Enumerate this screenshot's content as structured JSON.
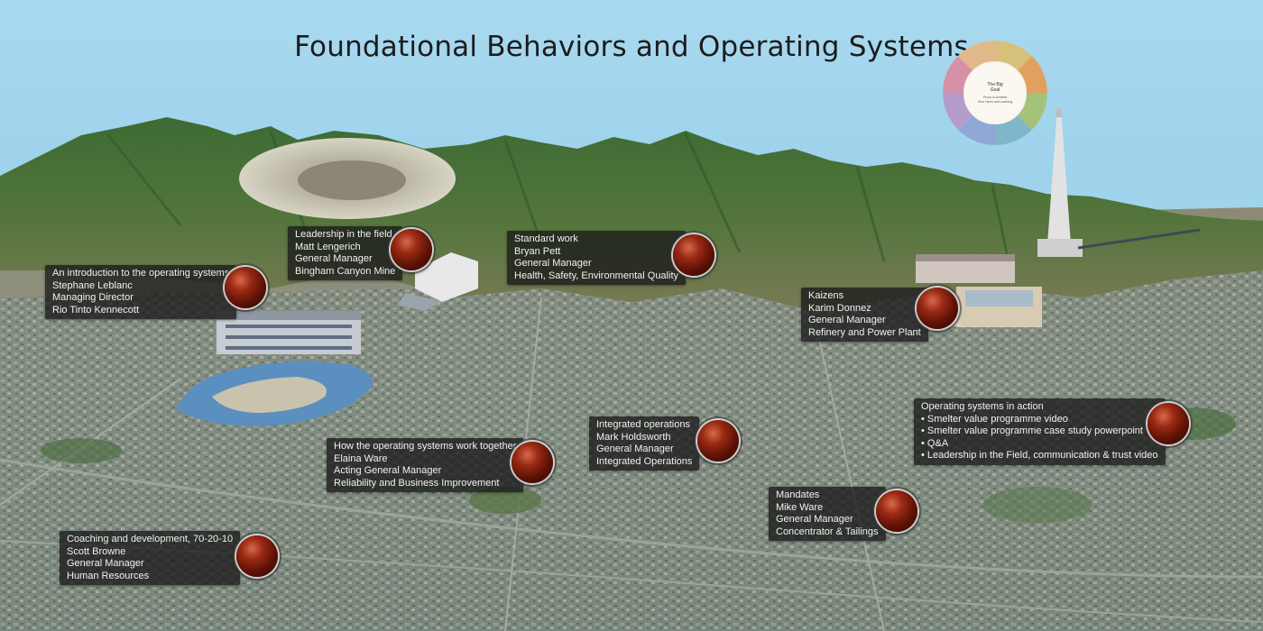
{
  "title": "Foundational Behaviors and Operating Systems",
  "colors": {
    "sky": "#a6d6ee",
    "label_bg": "#191919",
    "sphere": "#7a1e0c"
  },
  "hotspots": [
    {
      "id": "intro",
      "lines": [
        "An introduction to the operating systems",
        "Stephane Leblanc",
        "Managing Director",
        "Rio Tinto Kennecott"
      ]
    },
    {
      "id": "leadership",
      "lines": [
        "Leadership in the field",
        "Matt Lengerich",
        "General Manager",
        "Bingham Canyon Mine"
      ]
    },
    {
      "id": "standard-work",
      "lines": [
        "Standard work",
        "Bryan Pett",
        "General Manager",
        "Health, Safety, Environmental Quality"
      ]
    },
    {
      "id": "kaizens",
      "lines": [
        "Kaizens",
        "Karim Donnez",
        "General Manager",
        "Refinery and Power Plant"
      ]
    },
    {
      "id": "operating-in-action",
      "heading": "Operating systems in action",
      "bullets": [
        "Smelter value programme video",
        "Smelter value programme case study powerpoint",
        "Q&A",
        "Leadership in the Field, communication & trust video"
      ]
    },
    {
      "id": "integrated-ops",
      "lines": [
        "Integrated operations",
        "Mark Holdsworth",
        "General Manager",
        "Integrated Operations"
      ]
    },
    {
      "id": "how-work-together",
      "lines": [
        "How the operating systems work together",
        "Elaina Ware",
        "Acting General Manager",
        "Reliability and Business Improvement"
      ]
    },
    {
      "id": "mandates",
      "lines": [
        "Mandates",
        "Mike Ware",
        "General Manager",
        "Concentrator & Tailings"
      ]
    },
    {
      "id": "coaching",
      "lines": [
        "Coaching and development,  70-20-10",
        "Scott Browne",
        "General Manager",
        "Human Resources"
      ]
    }
  ],
  "wheel": {
    "center": [
      "The Big",
      "Goal"
    ],
    "center_sub": [
      "Proud to Achieve",
      "Zero Harm and Learning"
    ],
    "icon": "big-goal-wheel-icon"
  }
}
